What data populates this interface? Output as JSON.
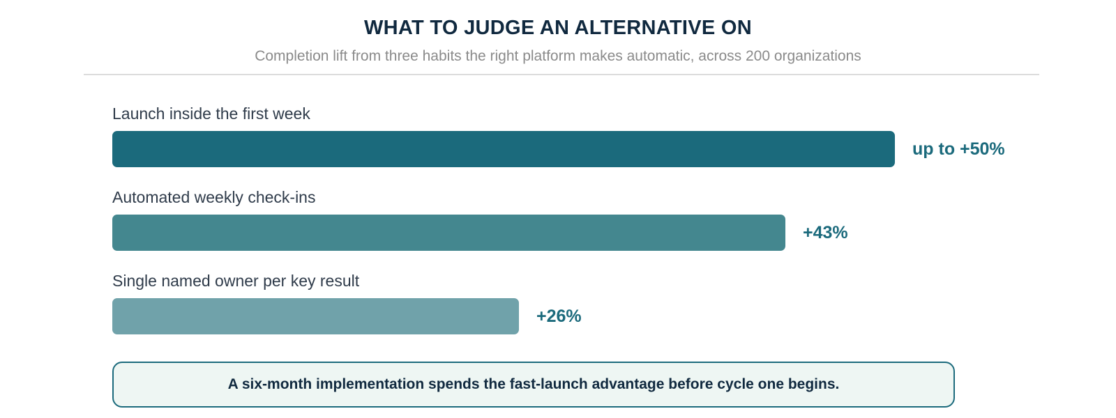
{
  "chart_data": {
    "type": "bar",
    "orientation": "horizontal",
    "title": "WHAT TO JUDGE AN ALTERNATIVE ON",
    "subtitle": "Completion lift from three habits the right platform makes automatic, across 200 organizations",
    "categories": [
      "Launch inside the first week",
      "Automated weekly check-ins",
      "Single named owner per key result"
    ],
    "values": [
      50,
      43,
      26
    ],
    "value_labels": [
      "up to +50%",
      "+43%",
      "+26%"
    ],
    "colors": [
      "#1b6a7c",
      "#44878f",
      "#70a2aa"
    ],
    "xlim": [
      0,
      50
    ],
    "unit": "%",
    "grid": false,
    "callout": "A six-month implementation spends the fast-launch advantage before cycle one begins."
  }
}
